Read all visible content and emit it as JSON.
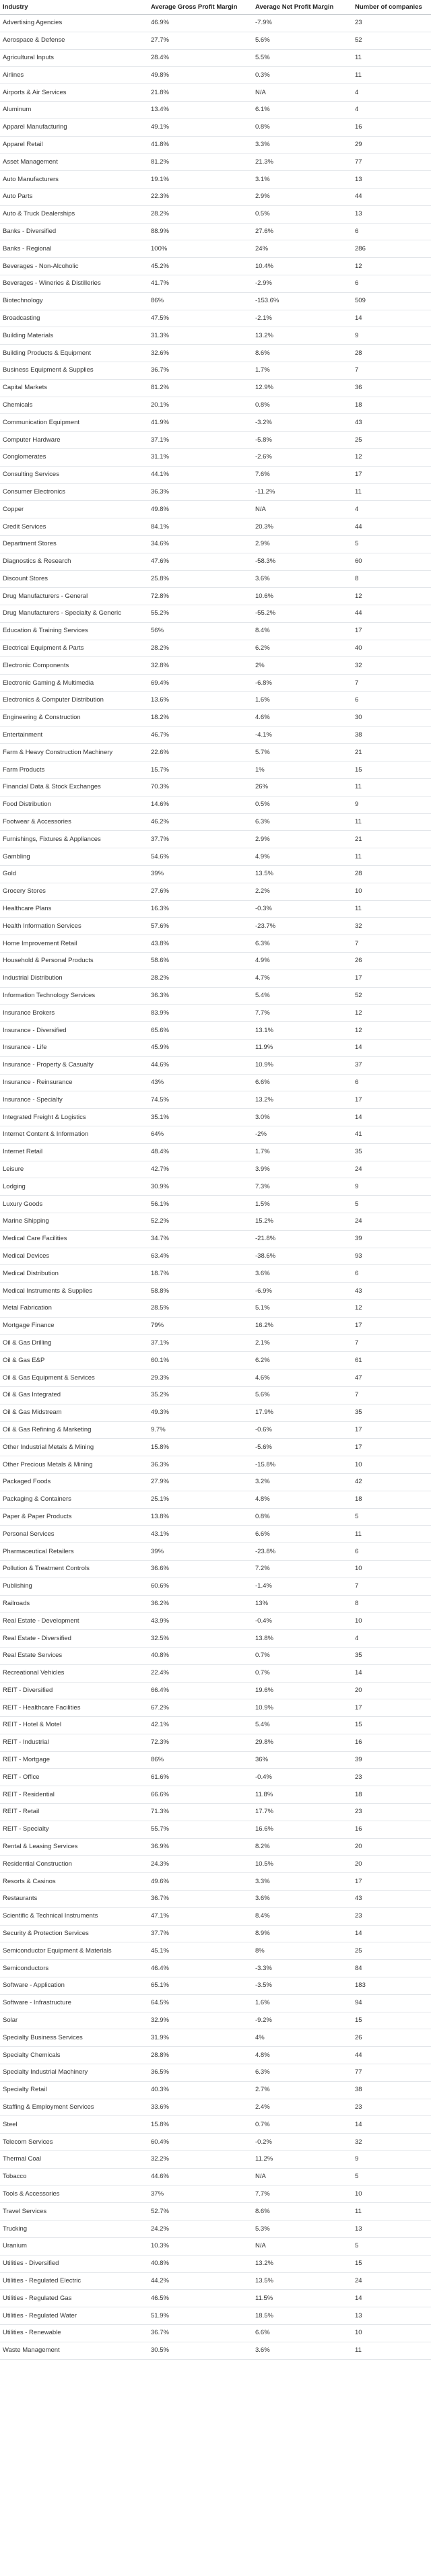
{
  "headers": [
    "Industry",
    "Average Gross Profit Margin",
    "Average Net Profit Margin",
    "Number of companies"
  ],
  "rows": [
    [
      "Advertising Agencies",
      "46.9%",
      "-7.9%",
      "23"
    ],
    [
      "Aerospace & Defense",
      "27.7%",
      "5.6%",
      "52"
    ],
    [
      "Agricultural Inputs",
      "28.4%",
      "5.5%",
      "11"
    ],
    [
      "Airlines",
      "49.8%",
      "0.3%",
      "11"
    ],
    [
      "Airports & Air Services",
      "21.8%",
      "N/A",
      "4"
    ],
    [
      "Aluminum",
      "13.4%",
      "6.1%",
      "4"
    ],
    [
      "Apparel Manufacturing",
      "49.1%",
      "0.8%",
      "16"
    ],
    [
      "Apparel Retail",
      "41.8%",
      "3.3%",
      "29"
    ],
    [
      "Asset Management",
      "81.2%",
      "21.3%",
      "77"
    ],
    [
      "Auto Manufacturers",
      "19.1%",
      "3.1%",
      "13"
    ],
    [
      "Auto Parts",
      "22.3%",
      "2.9%",
      "44"
    ],
    [
      "Auto & Truck Dealerships",
      "28.2%",
      "0.5%",
      "13"
    ],
    [
      "Banks - Diversified",
      "88.9%",
      "27.6%",
      "6"
    ],
    [
      "Banks - Regional",
      "100%",
      "24%",
      "286"
    ],
    [
      "Beverages - Non-Alcoholic",
      "45.2%",
      "10.4%",
      "12"
    ],
    [
      "Beverages - Wineries & Distilleries",
      "41.7%",
      "-2.9%",
      "6"
    ],
    [
      "Biotechnology",
      "86%",
      "-153.6%",
      "509"
    ],
    [
      "Broadcasting",
      "47.5%",
      "-2.1%",
      "14"
    ],
    [
      "Building Materials",
      "31.3%",
      "13.2%",
      "9"
    ],
    [
      "Building Products & Equipment",
      "32.6%",
      "8.6%",
      "28"
    ],
    [
      "Business Equipment & Supplies",
      "36.7%",
      "1.7%",
      "7"
    ],
    [
      "Capital Markets",
      "81.2%",
      "12.9%",
      "36"
    ],
    [
      "Chemicals",
      "20.1%",
      "0.8%",
      "18"
    ],
    [
      "Communication Equipment",
      "41.9%",
      "-3.2%",
      "43"
    ],
    [
      "Computer Hardware",
      "37.1%",
      "-5.8%",
      "25"
    ],
    [
      "Conglomerates",
      "31.1%",
      "-2.6%",
      "12"
    ],
    [
      "Consulting Services",
      "44.1%",
      "7.6%",
      "17"
    ],
    [
      "Consumer Electronics",
      "36.3%",
      "-11.2%",
      "11"
    ],
    [
      "Copper",
      "49.8%",
      "N/A",
      "4"
    ],
    [
      "Credit Services",
      "84.1%",
      "20.3%",
      "44"
    ],
    [
      "Department Stores",
      "34.6%",
      "2.9%",
      "5"
    ],
    [
      "Diagnostics & Research",
      "47.6%",
      "-58.3%",
      "60"
    ],
    [
      "Discount Stores",
      "25.8%",
      "3.6%",
      "8"
    ],
    [
      "Drug Manufacturers - General",
      "72.8%",
      "10.6%",
      "12"
    ],
    [
      "Drug Manufacturers - Specialty & Generic",
      "55.2%",
      "-55.2%",
      "44"
    ],
    [
      "Education & Training Services",
      "56%",
      "8.4%",
      "17"
    ],
    [
      "Electrical Equipment & Parts",
      "28.2%",
      "6.2%",
      "40"
    ],
    [
      "Electronic Components",
      "32.8%",
      "2%",
      "32"
    ],
    [
      "Electronic Gaming & Multimedia",
      "69.4%",
      "-6.8%",
      "7"
    ],
    [
      "Electronics & Computer Distribution",
      "13.6%",
      "1.6%",
      "6"
    ],
    [
      "Engineering & Construction",
      "18.2%",
      "4.6%",
      "30"
    ],
    [
      "Entertainment",
      "46.7%",
      "-4.1%",
      "38"
    ],
    [
      "Farm & Heavy Construction Machinery",
      "22.6%",
      "5.7%",
      "21"
    ],
    [
      "Farm Products",
      "15.7%",
      "1%",
      "15"
    ],
    [
      "Financial Data & Stock Exchanges",
      "70.3%",
      "26%",
      "11"
    ],
    [
      "Food Distribution",
      "14.6%",
      "0.5%",
      "9"
    ],
    [
      "Footwear & Accessories",
      "46.2%",
      "6.3%",
      "11"
    ],
    [
      "Furnishings, Fixtures & Appliances",
      "37.7%",
      "2.9%",
      "21"
    ],
    [
      "Gambling",
      "54.6%",
      "4.9%",
      "11"
    ],
    [
      "Gold",
      "39%",
      "13.5%",
      "28"
    ],
    [
      "Grocery Stores",
      "27.6%",
      "2.2%",
      "10"
    ],
    [
      "Healthcare Plans",
      "16.3%",
      "-0.3%",
      "11"
    ],
    [
      "Health Information Services",
      "57.6%",
      "-23.7%",
      "32"
    ],
    [
      "Home Improvement Retail",
      "43.8%",
      "6.3%",
      "7"
    ],
    [
      "Household & Personal Products",
      "58.6%",
      "4.9%",
      "26"
    ],
    [
      "Industrial Distribution",
      "28.2%",
      "4.7%",
      "17"
    ],
    [
      "Information Technology Services",
      "36.3%",
      "5.4%",
      "52"
    ],
    [
      "Insurance Brokers",
      "83.9%",
      "7.7%",
      "12"
    ],
    [
      "Insurance - Diversified",
      "65.6%",
      "13.1%",
      "12"
    ],
    [
      "Insurance - Life",
      "45.9%",
      "11.9%",
      "14"
    ],
    [
      "Insurance - Property & Casualty",
      "44.6%",
      "10.9%",
      "37"
    ],
    [
      "Insurance - Reinsurance",
      "43%",
      "6.6%",
      "6"
    ],
    [
      "Insurance - Specialty",
      "74.5%",
      "13.2%",
      "17"
    ],
    [
      "Integrated Freight & Logistics",
      "35.1%",
      "3.0%",
      "14"
    ],
    [
      "Internet Content & Information",
      "64%",
      "-2%",
      "41"
    ],
    [
      "Internet Retail",
      "48.4%",
      "1.7%",
      "35"
    ],
    [
      "Leisure",
      "42.7%",
      "3.9%",
      "24"
    ],
    [
      "Lodging",
      "30.9%",
      "7.3%",
      "9"
    ],
    [
      "Luxury Goods",
      "56.1%",
      "1.5%",
      "5"
    ],
    [
      "Marine Shipping",
      "52.2%",
      "15.2%",
      "24"
    ],
    [
      "Medical Care Facilities",
      "34.7%",
      "-21.8%",
      "39"
    ],
    [
      "Medical Devices",
      "63.4%",
      "-38.6%",
      "93"
    ],
    [
      "Medical Distribution",
      "18.7%",
      "3.6%",
      "6"
    ],
    [
      "Medical Instruments & Supplies",
      "58.8%",
      "-6.9%",
      "43"
    ],
    [
      "Metal Fabrication",
      "28.5%",
      "5.1%",
      "12"
    ],
    [
      "Mortgage Finance",
      "79%",
      "16.2%",
      "17"
    ],
    [
      "Oil & Gas Drilling",
      "37.1%",
      "2.1%",
      "7"
    ],
    [
      "Oil & Gas E&P",
      "60.1%",
      "6.2%",
      "61"
    ],
    [
      "Oil & Gas Equipment & Services",
      "29.3%",
      "4.6%",
      "47"
    ],
    [
      "Oil & Gas Integrated",
      "35.2%",
      "5.6%",
      "7"
    ],
    [
      "Oil & Gas Midstream",
      "49.3%",
      "17.9%",
      "35"
    ],
    [
      "Oil & Gas Refining & Marketing",
      "9.7%",
      "-0.6%",
      "17"
    ],
    [
      "Other Industrial Metals & Mining",
      "15.8%",
      "-5.6%",
      "17"
    ],
    [
      "Other Precious Metals & Mining",
      "36.3%",
      "-15.8%",
      "10"
    ],
    [
      "Packaged Foods",
      "27.9%",
      "3.2%",
      "42"
    ],
    [
      "Packaging & Containers",
      "25.1%",
      "4.8%",
      "18"
    ],
    [
      "Paper & Paper Products",
      "13.8%",
      "0.8%",
      "5"
    ],
    [
      "Personal Services",
      "43.1%",
      "6.6%",
      "11"
    ],
    [
      "Pharmaceutical Retailers",
      "39%",
      "-23.8%",
      "6"
    ],
    [
      "Pollution & Treatment Controls",
      "36.6%",
      "7.2%",
      "10"
    ],
    [
      "Publishing",
      "60.6%",
      "-1.4%",
      "7"
    ],
    [
      "Railroads",
      "36.2%",
      "13%",
      "8"
    ],
    [
      "Real Estate - Development",
      "43.9%",
      "-0.4%",
      "10"
    ],
    [
      "Real Estate - Diversified",
      "32.5%",
      "13.8%",
      "4"
    ],
    [
      "Real Estate Services",
      "40.8%",
      "0.7%",
      "35"
    ],
    [
      "Recreational Vehicles",
      "22.4%",
      "0.7%",
      "14"
    ],
    [
      "REIT - Diversified",
      "66.4%",
      "19.6%",
      "20"
    ],
    [
      "REIT - Healthcare Facilities",
      "67.2%",
      "10.9%",
      "17"
    ],
    [
      "REIT - Hotel & Motel",
      "42.1%",
      "5.4%",
      "15"
    ],
    [
      "REIT - Industrial",
      "72.3%",
      "29.8%",
      "16"
    ],
    [
      "REIT - Mortgage",
      "86%",
      "36%",
      "39"
    ],
    [
      "REIT - Office",
      "61.6%",
      "-0.4%",
      "23"
    ],
    [
      "REIT - Residential",
      "66.6%",
      "11.8%",
      "18"
    ],
    [
      "REIT - Retail",
      "71.3%",
      "17.7%",
      "23"
    ],
    [
      "REIT - Specialty",
      "55.7%",
      "16.6%",
      "16"
    ],
    [
      "Rental & Leasing Services",
      "36.9%",
      "8.2%",
      "20"
    ],
    [
      "Residential Construction",
      "24.3%",
      "10.5%",
      "20"
    ],
    [
      "Resorts & Casinos",
      "49.6%",
      "3.3%",
      "17"
    ],
    [
      "Restaurants",
      "36.7%",
      "3.6%",
      "43"
    ],
    [
      "Scientific & Technical Instruments",
      "47.1%",
      "8.4%",
      "23"
    ],
    [
      "Security & Protection Services",
      "37.7%",
      "8.9%",
      "14"
    ],
    [
      "Semiconductor Equipment & Materials",
      "45.1%",
      "8%",
      "25"
    ],
    [
      "Semiconductors",
      "46.4%",
      "-3.3%",
      "84"
    ],
    [
      "Software - Application",
      "65.1%",
      "-3.5%",
      "183"
    ],
    [
      "Software - Infrastructure",
      "64.5%",
      "1.6%",
      "94"
    ],
    [
      "Solar",
      "32.9%",
      "-9.2%",
      "15"
    ],
    [
      "Specialty Business Services",
      "31.9%",
      "4%",
      "26"
    ],
    [
      "Specialty Chemicals",
      "28.8%",
      "4.8%",
      "44"
    ],
    [
      "Specialty Industrial Machinery",
      "36.5%",
      "6.3%",
      "77"
    ],
    [
      "Specialty Retail",
      "40.3%",
      "2.7%",
      "38"
    ],
    [
      "Staffing & Employment Services",
      "33.6%",
      "2.4%",
      "23"
    ],
    [
      "Steel",
      "15.8%",
      "0.7%",
      "14"
    ],
    [
      "Telecom Services",
      "60.4%",
      "-0.2%",
      "32"
    ],
    [
      "Thermal Coal",
      "32.2%",
      "11.2%",
      "9"
    ],
    [
      "Tobacco",
      "44.6%",
      "N/A",
      "5"
    ],
    [
      "Tools & Accessories",
      "37%",
      "7.7%",
      "10"
    ],
    [
      "Travel Services",
      "52.7%",
      "8.6%",
      "11"
    ],
    [
      "Trucking",
      "24.2%",
      "5.3%",
      "13"
    ],
    [
      "Uranium",
      "10.3%",
      "N/A",
      "5"
    ],
    [
      "Utilities - Diversified",
      "40.8%",
      "13.2%",
      "15"
    ],
    [
      "Utilities - Regulated Electric",
      "44.2%",
      "13.5%",
      "24"
    ],
    [
      "Utilities - Regulated Gas",
      "46.5%",
      "11.5%",
      "14"
    ],
    [
      "Utilities - Regulated Water",
      "51.9%",
      "18.5%",
      "13"
    ],
    [
      "Utilities - Renewable",
      "36.7%",
      "6.6%",
      "10"
    ],
    [
      "Waste Management",
      "30.5%",
      "3.6%",
      "11"
    ]
  ]
}
